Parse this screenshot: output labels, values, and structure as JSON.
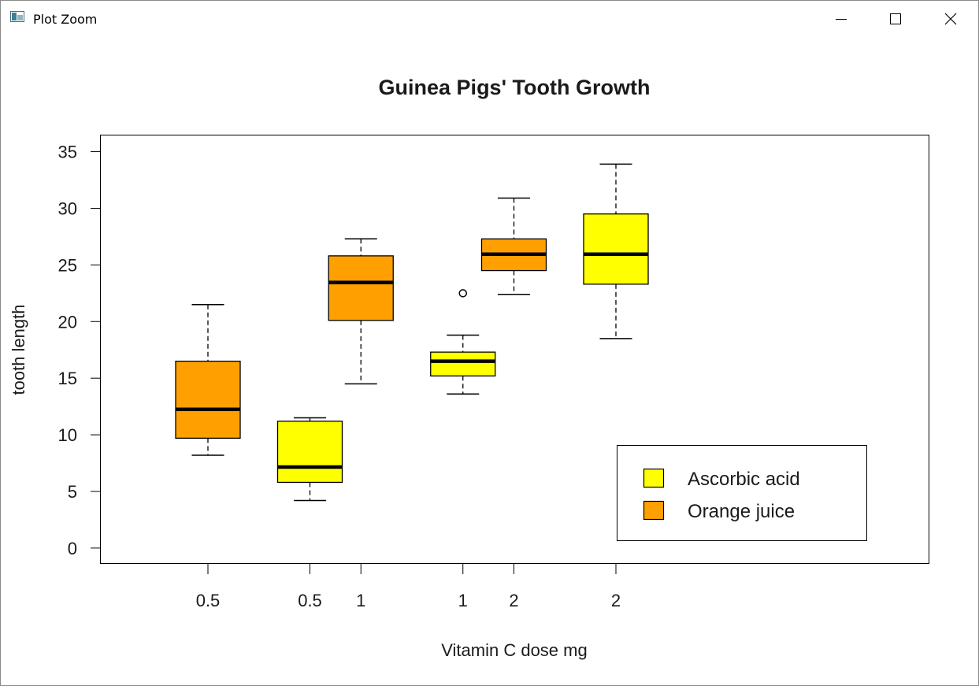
{
  "window": {
    "title": "Plot Zoom",
    "icons": {
      "app": "plot-window-icon",
      "minimize": "minimize-icon",
      "maximize": "maximize-icon",
      "close": "close-icon"
    }
  },
  "colors": {
    "ascorbic": "#ffff00",
    "orange": "#ffa000",
    "line": "#000000"
  },
  "chart_data": {
    "type": "boxplot",
    "title": "Guinea Pigs' Tooth Growth",
    "xlabel": "Vitamin C dose mg",
    "ylabel": "tooth length",
    "ylim": [
      -1.4,
      36.5
    ],
    "yticks": [
      0,
      5,
      10,
      15,
      20,
      25,
      30,
      35
    ],
    "boxes": [
      {
        "label": "0.5",
        "group": "Orange juice",
        "pos": 1.0,
        "whisker_low": 8.2,
        "q1": 9.7,
        "median": 12.25,
        "q3": 16.5,
        "whisker_high": 21.5,
        "outliers": []
      },
      {
        "label": "0.5",
        "group": "Ascorbic acid",
        "pos": 2.0,
        "whisker_low": 4.2,
        "q1": 5.8,
        "median": 7.15,
        "q3": 11.2,
        "whisker_high": 11.5,
        "outliers": []
      },
      {
        "label": "1",
        "group": "Orange juice",
        "pos": 2.5,
        "whisker_low": 14.5,
        "q1": 20.1,
        "median": 23.45,
        "q3": 25.8,
        "whisker_high": 27.3,
        "outliers": []
      },
      {
        "label": "1",
        "group": "Ascorbic acid",
        "pos": 3.5,
        "whisker_low": 13.6,
        "q1": 15.2,
        "median": 16.5,
        "q3": 17.3,
        "whisker_high": 18.8,
        "outliers": [
          22.5
        ]
      },
      {
        "label": "2",
        "group": "Orange juice",
        "pos": 4.0,
        "whisker_low": 22.4,
        "q1": 24.5,
        "median": 25.95,
        "q3": 27.3,
        "whisker_high": 30.9,
        "outliers": []
      },
      {
        "label": "2",
        "group": "Ascorbic acid",
        "pos": 5.0,
        "whisker_low": 18.5,
        "q1": 23.3,
        "median": 25.95,
        "q3": 29.5,
        "whisker_high": 33.9,
        "outliers": []
      }
    ],
    "legend": {
      "position": "bottom-right",
      "entries": [
        {
          "label": "Ascorbic acid",
          "color": "#ffff00"
        },
        {
          "label": "Orange juice",
          "color": "#ffa000"
        }
      ]
    }
  }
}
